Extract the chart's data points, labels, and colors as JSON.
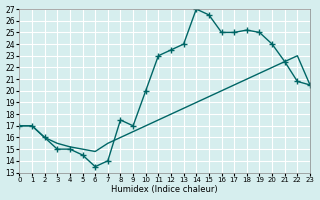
{
  "xlabel": "Humidex (Indice chaleur)",
  "ylabel": "",
  "bg_color": "#d6eeee",
  "grid_color": "#ffffff",
  "line_color": "#006666",
  "xlim": [
    0,
    23
  ],
  "ylim": [
    13,
    27
  ],
  "xticks": [
    0,
    1,
    2,
    3,
    4,
    5,
    6,
    7,
    8,
    9,
    10,
    11,
    12,
    13,
    14,
    15,
    16,
    17,
    18,
    19,
    20,
    21,
    22,
    23
  ],
  "yticks": [
    13,
    14,
    15,
    16,
    17,
    18,
    19,
    20,
    21,
    22,
    23,
    24,
    25,
    26,
    27
  ],
  "line1_x": [
    0,
    1,
    2,
    3,
    4,
    5,
    6,
    7,
    8,
    9,
    10,
    11,
    12,
    13,
    14,
    15,
    16,
    17,
    18,
    19,
    20,
    21,
    22,
    23
  ],
  "line1_y": [
    17,
    17,
    16,
    15,
    15,
    14.5,
    13.5,
    14,
    17.5,
    17,
    20,
    23,
    23.5,
    24,
    27,
    26.5,
    25,
    25,
    25.2,
    25,
    24,
    22.5,
    20.8,
    20.5
  ],
  "line2_x": [
    0,
    1,
    2,
    3,
    4,
    5,
    6,
    7,
    8,
    9,
    10,
    11,
    12,
    13,
    14,
    15,
    16,
    17,
    18,
    19,
    20,
    21,
    22,
    23
  ],
  "line2_y": [
    17,
    17,
    16,
    15.5,
    15.2,
    15,
    14.8,
    15.5,
    16,
    16.5,
    17,
    17.5,
    18,
    18.5,
    19,
    19.5,
    20,
    20.5,
    21,
    21.5,
    22,
    22.5,
    23,
    20.5
  ],
  "marker": "+"
}
